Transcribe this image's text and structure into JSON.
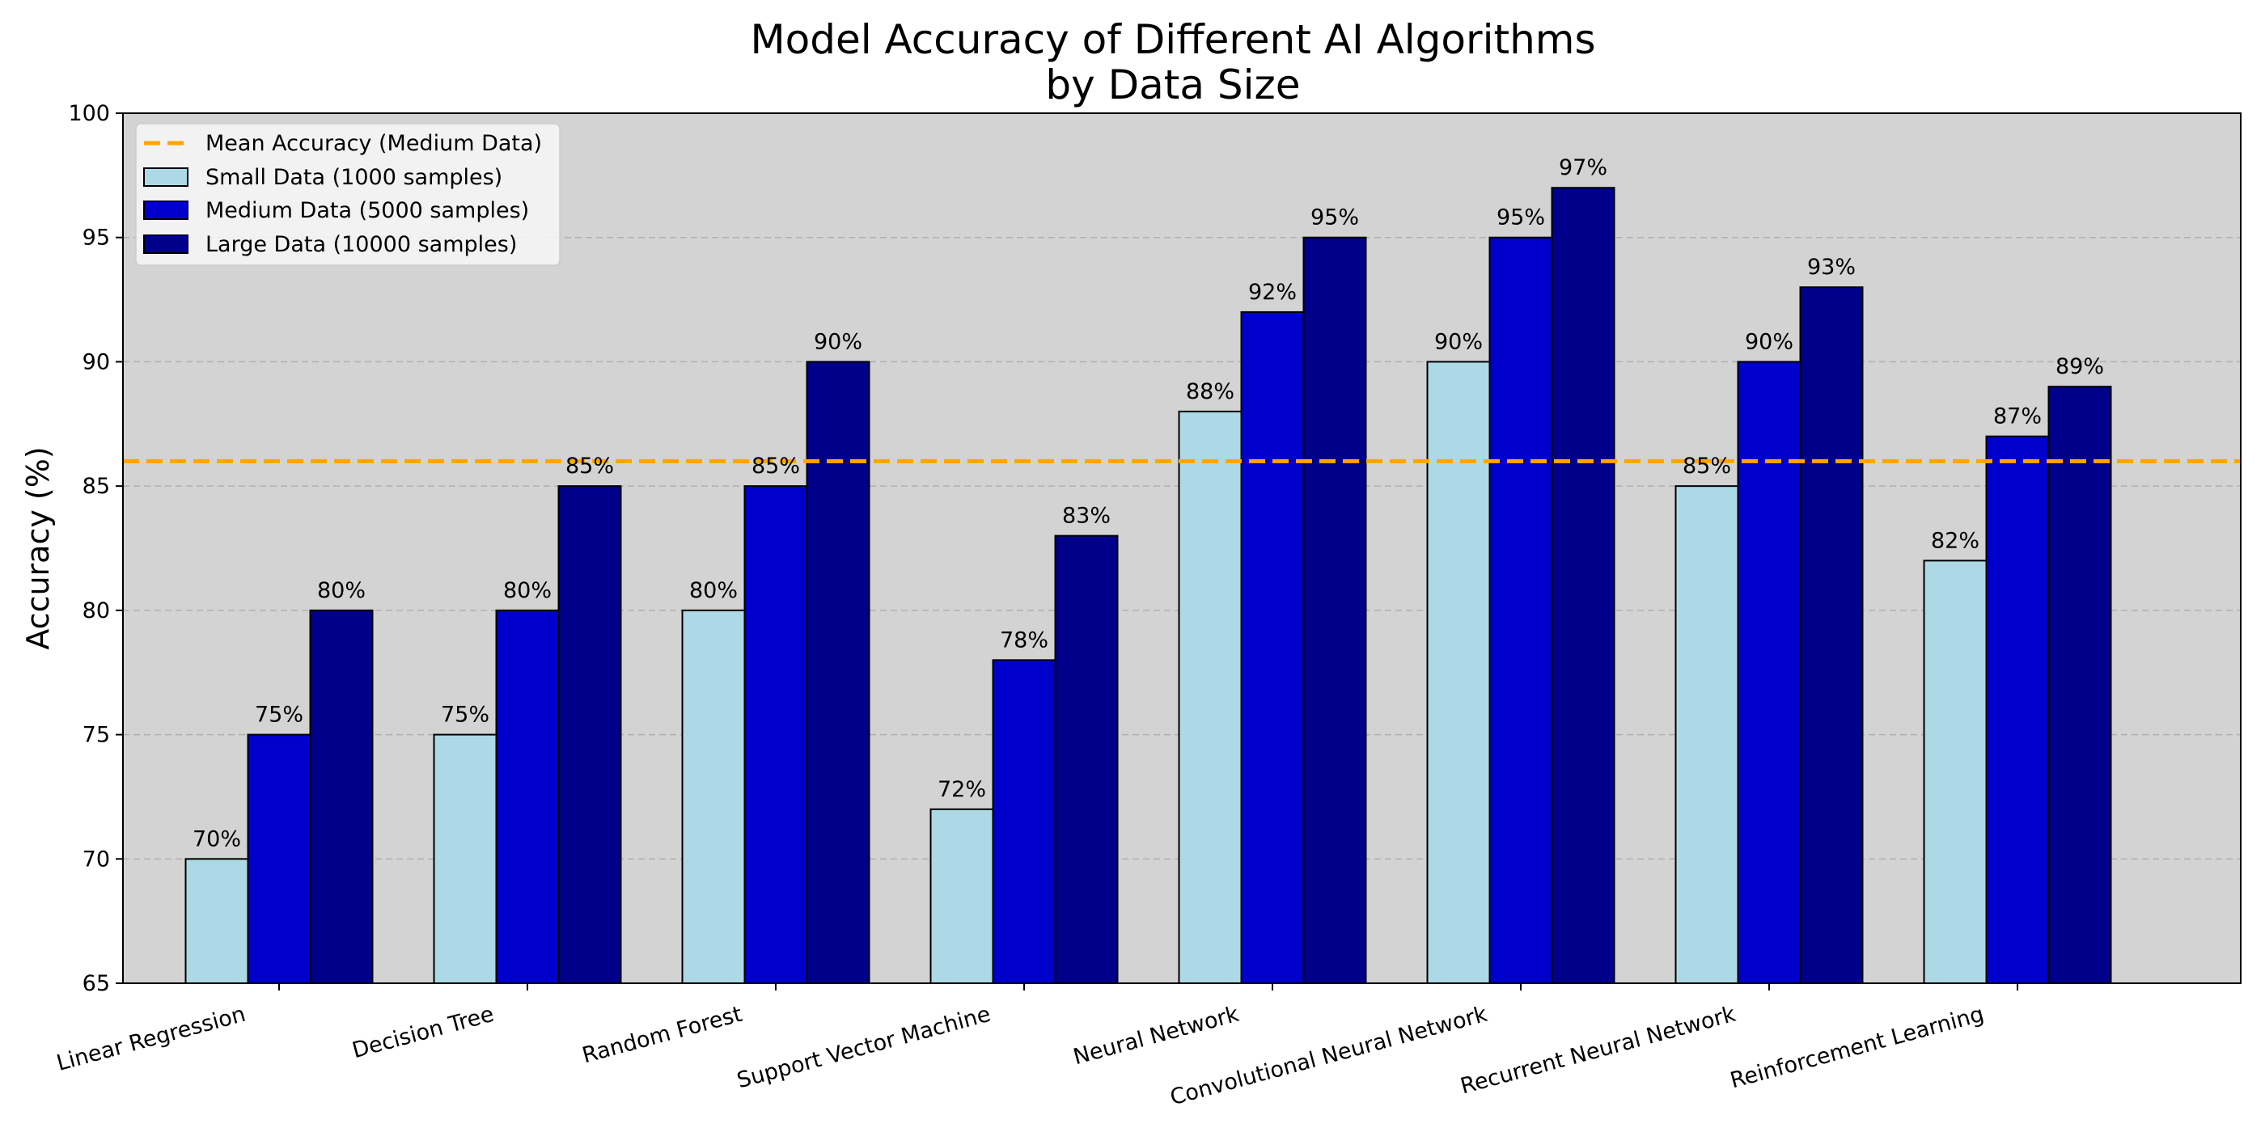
{
  "chart_data": {
    "type": "bar",
    "title": [
      "Model Accuracy of Different AI Algorithms",
      "by Data Size"
    ],
    "xlabel": "",
    "ylabel": "Accuracy (%)",
    "ylim": [
      65,
      100
    ],
    "yticks": [
      "65",
      "70",
      "75",
      "80",
      "85",
      "90",
      "95",
      "100"
    ],
    "grid": "horizontal dashed",
    "legend_position": "top-left",
    "categories": [
      "Linear Regression",
      "Decision Tree",
      "Random Forest",
      "Support Vector Machine",
      "Neural Network",
      "Convolutional Neural Network",
      "Recurrent Neural Network",
      "Reinforcement Learning"
    ],
    "series": [
      {
        "name": "Small Data (1000 samples)",
        "color": "#add8e6",
        "values": [
          70,
          75,
          80,
          72,
          88,
          90,
          85,
          82
        ],
        "labels": [
          "70%",
          "75%",
          "80%",
          "72%",
          "88%",
          "90%",
          "85%",
          "82%"
        ]
      },
      {
        "name": "Medium Data (5000 samples)",
        "color": "#0000cd",
        "values": [
          75,
          80,
          85,
          78,
          92,
          95,
          90,
          87
        ],
        "labels": [
          "75%",
          "80%",
          "85%",
          "78%",
          "92%",
          "95%",
          "90%",
          "87%"
        ]
      },
      {
        "name": "Large Data (10000 samples)",
        "color": "#00008b",
        "values": [
          80,
          85,
          90,
          83,
          95,
          97,
          93,
          89
        ],
        "labels": [
          "80%",
          "85%",
          "90%",
          "83%",
          "95%",
          "97%",
          "93%",
          "89%"
        ]
      }
    ],
    "reference_line": {
      "name": "Mean Accuracy (Medium Data)",
      "value": 86,
      "color": "#ffa500"
    },
    "plot_background": "#d3d3d3"
  }
}
